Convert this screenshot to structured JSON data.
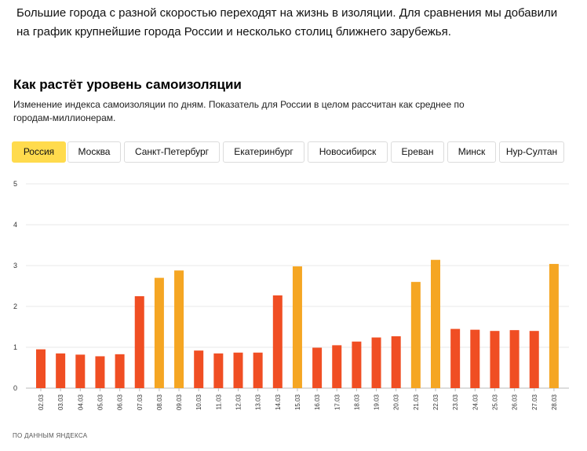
{
  "intro": {
    "line1": "Большие города с разной скоростью переходят на жизнь в изоляции. Для сравнения мы добавили",
    "line2": "на график крупнейшие города России и несколько столиц ближнего зарубежья."
  },
  "chart_title": "Как растёт уровень самоизоляции",
  "chart_subtitle": {
    "line1": "Изменение индекса самоизоляции по дням. Показатель для России в целом рассчитан как среднее по",
    "line2": "городам-миллионерам."
  },
  "tabs": [
    {
      "label": "Россия",
      "active": true
    },
    {
      "label": "Москва",
      "active": false
    },
    {
      "label": "Санкт-Петербург",
      "active": false
    },
    {
      "label": "Екатеринбург",
      "active": false
    },
    {
      "label": "Новосибирск",
      "active": false
    },
    {
      "label": "Ереван",
      "active": false
    },
    {
      "label": "Минск",
      "active": false
    },
    {
      "label": "Нур-Султан",
      "active": false
    }
  ],
  "colors": {
    "weekday": "#f04e23",
    "weekend": "#f5a623",
    "active_tab": "#ffdb4d",
    "grid": "#e8e8e8"
  },
  "chart_data": {
    "type": "bar",
    "title": "Как растёт уровень самоизоляции",
    "xlabel": "",
    "ylabel": "",
    "ylim": [
      0,
      5
    ],
    "yticks": [
      0,
      1,
      2,
      3,
      4,
      5
    ],
    "grid": true,
    "categories": [
      "02.03",
      "03.03",
      "04.03",
      "05.03",
      "06.03",
      "07.03",
      "08.03",
      "09.03",
      "10.03",
      "11.03",
      "12.03",
      "13.03",
      "14.03",
      "15.03",
      "16.03",
      "17.03",
      "18.03",
      "19.03",
      "20.03",
      "21.03",
      "22.03",
      "23.03",
      "24.03",
      "25.03",
      "26.03",
      "27.03",
      "28.03"
    ],
    "values": [
      0.95,
      0.85,
      0.82,
      0.78,
      0.83,
      2.25,
      2.7,
      2.88,
      0.92,
      0.85,
      0.87,
      0.87,
      2.27,
      2.98,
      0.99,
      1.05,
      1.14,
      1.24,
      1.27,
      2.6,
      3.14,
      1.45,
      1.43,
      1.4,
      1.42,
      1.4,
      3.04
    ],
    "highlight": [
      false,
      false,
      false,
      false,
      false,
      false,
      true,
      true,
      false,
      false,
      false,
      false,
      false,
      true,
      false,
      false,
      false,
      false,
      false,
      true,
      true,
      false,
      false,
      false,
      false,
      false,
      true
    ]
  },
  "source": "ПО ДАННЫМ ЯНДЕКСА"
}
